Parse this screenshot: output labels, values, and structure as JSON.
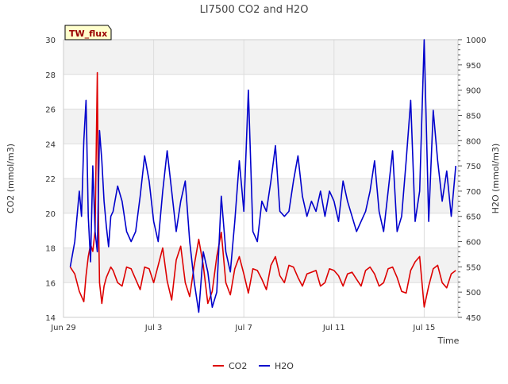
{
  "chart_data": {
    "type": "line",
    "title": "LI7500 CO2 and H2O",
    "xlabel": "Time",
    "ylabel": "CO2 (mmol/m3)",
    "y2label": "H2O (mmol/m3)",
    "badge": "TW_flux",
    "xlim": [
      0,
      17.5
    ],
    "ylim": [
      14,
      30
    ],
    "y2lim": [
      450,
      1000
    ],
    "x_ticks": [
      {
        "value": 0,
        "label": "Jun 29"
      },
      {
        "value": 4,
        "label": "Jul 3"
      },
      {
        "value": 8,
        "label": "Jul 7"
      },
      {
        "value": 12,
        "label": "Jul 11"
      },
      {
        "value": 16,
        "label": "Jul 15"
      }
    ],
    "y_ticks": [
      14,
      16,
      18,
      20,
      22,
      24,
      26,
      28,
      30
    ],
    "y2_ticks": [
      450,
      500,
      550,
      600,
      650,
      700,
      750,
      800,
      850,
      900,
      950,
      1000
    ],
    "legend_position": "bottom-center",
    "series": [
      {
        "name": "CO2",
        "axis": "left",
        "color": "#dd0000",
        "x": [
          0.3,
          0.5,
          0.7,
          0.9,
          1.0,
          1.1,
          1.2,
          1.3,
          1.4,
          1.5,
          1.55,
          1.6,
          1.7,
          1.8,
          1.9,
          2.0,
          2.1,
          2.2,
          2.4,
          2.6,
          2.8,
          3.0,
          3.2,
          3.4,
          3.6,
          3.8,
          4.0,
          4.2,
          4.4,
          4.6,
          4.8,
          5.0,
          5.2,
          5.4,
          5.6,
          5.8,
          6.0,
          6.2,
          6.4,
          6.6,
          6.8,
          7.0,
          7.2,
          7.4,
          7.6,
          7.8,
          8.0,
          8.2,
          8.4,
          8.6,
          8.8,
          9.0,
          9.2,
          9.4,
          9.6,
          9.8,
          10.0,
          10.2,
          10.4,
          10.6,
          10.8,
          11.0,
          11.2,
          11.4,
          11.6,
          11.8,
          12.0,
          12.2,
          12.4,
          12.6,
          12.8,
          13.0,
          13.2,
          13.4,
          13.6,
          13.8,
          14.0,
          14.2,
          14.4,
          14.6,
          14.8,
          15.0,
          15.2,
          15.4,
          15.6,
          15.8,
          16.0,
          16.2,
          16.4,
          16.6,
          16.8,
          17.0,
          17.2,
          17.4
        ],
        "values": [
          16.9,
          16.5,
          15.5,
          14.9,
          16.4,
          17.5,
          18.2,
          17.8,
          19.0,
          28.1,
          20.0,
          16.0,
          14.8,
          15.8,
          16.3,
          16.6,
          16.9,
          16.7,
          16.0,
          15.8,
          16.9,
          16.8,
          16.2,
          15.6,
          16.9,
          16.8,
          16.0,
          17.0,
          18.0,
          16.1,
          15.0,
          17.3,
          18.1,
          16.0,
          15.2,
          17.0,
          18.5,
          17.0,
          14.8,
          15.5,
          17.5,
          18.9,
          16.0,
          15.3,
          16.8,
          17.5,
          16.5,
          15.4,
          16.8,
          16.7,
          16.2,
          15.6,
          17.0,
          17.5,
          16.4,
          16.0,
          17.0,
          16.9,
          16.3,
          15.8,
          16.5,
          16.6,
          16.7,
          15.8,
          16.0,
          16.8,
          16.7,
          16.4,
          15.8,
          16.5,
          16.6,
          16.2,
          15.8,
          16.7,
          16.9,
          16.5,
          15.8,
          16.0,
          16.8,
          16.9,
          16.3,
          15.5,
          15.4,
          16.7,
          17.2,
          17.5,
          14.6,
          15.8,
          16.8,
          17.0,
          16.0,
          15.7,
          16.5,
          16.7
        ]
      },
      {
        "name": "H2O",
        "axis": "right",
        "color": "#0000cc",
        "x": [
          0.3,
          0.5,
          0.7,
          0.8,
          0.9,
          1.0,
          1.1,
          1.2,
          1.3,
          1.4,
          1.5,
          1.6,
          1.7,
          1.8,
          1.9,
          2.0,
          2.1,
          2.2,
          2.4,
          2.6,
          2.8,
          3.0,
          3.2,
          3.4,
          3.6,
          3.8,
          4.0,
          4.2,
          4.4,
          4.6,
          4.8,
          5.0,
          5.2,
          5.4,
          5.6,
          5.8,
          6.0,
          6.2,
          6.4,
          6.6,
          6.8,
          7.0,
          7.2,
          7.4,
          7.6,
          7.8,
          8.0,
          8.2,
          8.4,
          8.6,
          8.8,
          9.0,
          9.2,
          9.4,
          9.6,
          9.8,
          10.0,
          10.2,
          10.4,
          10.6,
          10.8,
          11.0,
          11.2,
          11.4,
          11.6,
          11.8,
          12.0,
          12.2,
          12.4,
          12.6,
          12.8,
          13.0,
          13.2,
          13.4,
          13.6,
          13.8,
          14.0,
          14.2,
          14.4,
          14.6,
          14.8,
          15.0,
          15.2,
          15.4,
          15.6,
          15.8,
          16.0,
          16.2,
          16.4,
          16.6,
          16.8,
          17.0,
          17.2,
          17.4
        ],
        "values": [
          550,
          600,
          700,
          650,
          800,
          880,
          650,
          560,
          750,
          620,
          580,
          820,
          760,
          680,
          630,
          590,
          650,
          660,
          710,
          680,
          620,
          600,
          620,
          690,
          770,
          720,
          640,
          600,
          700,
          780,
          700,
          620,
          680,
          720,
          600,
          520,
          460,
          580,
          540,
          470,
          500,
          690,
          580,
          540,
          640,
          760,
          660,
          900,
          620,
          600,
          680,
          660,
          720,
          790,
          660,
          650,
          660,
          720,
          770,
          690,
          650,
          680,
          660,
          700,
          650,
          700,
          680,
          640,
          720,
          680,
          650,
          620,
          640,
          660,
          700,
          760,
          660,
          620,
          700,
          780,
          620,
          650,
          760,
          880,
          640,
          700,
          1000,
          640,
          860,
          760,
          680,
          740,
          650,
          750
        ]
      }
    ]
  }
}
